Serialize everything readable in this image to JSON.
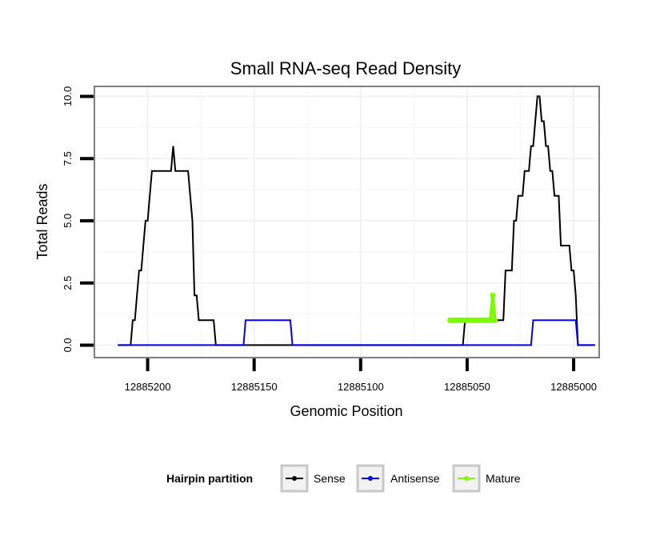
{
  "chart_data": {
    "type": "line",
    "title": "Small RNA-seq Read Density",
    "xlabel": "Genomic Position",
    "ylabel": "Total Reads",
    "x_reversed": true,
    "xlim": [
      12885225,
      12884988
    ],
    "ylim": [
      -0.5,
      10.4
    ],
    "x_ticks": [
      12885200,
      12885150,
      12885100,
      12885050,
      12885000
    ],
    "x_tick_labels": [
      "12885200",
      "12885150",
      "12885100",
      "12885050",
      "12885000"
    ],
    "y_ticks": [
      0,
      2.5,
      5,
      7.5,
      10
    ],
    "y_tick_labels": [
      "0.0",
      "2.5",
      "5.0",
      "7.5",
      "10.0"
    ],
    "grid": true,
    "legend": {
      "title": "Hairpin partition",
      "position": "bottom",
      "entries": [
        "Sense",
        "Antisense",
        "Mature"
      ]
    },
    "series": [
      {
        "name": "Sense",
        "color": "#000000",
        "x": [
          12885214,
          12885209,
          12885208,
          12885207,
          12885206,
          12885205,
          12885204,
          12885203,
          12885202,
          12885201,
          12885200,
          12885199,
          12885198,
          12885197,
          12885196,
          12885195,
          12885194,
          12885193,
          12885192,
          12885191,
          12885190,
          12885189,
          12885188,
          12885187,
          12885186,
          12885185,
          12885184,
          12885183,
          12885182,
          12885181,
          12885180,
          12885179,
          12885178,
          12885177,
          12885176,
          12885175,
          12885174,
          12885173,
          12885172,
          12885171,
          12885170,
          12885169,
          12885168,
          12885167,
          12885166,
          12885165,
          12885164,
          12885163,
          12885162,
          12885161,
          12885160,
          12885155,
          12885150,
          12885140,
          12885120,
          12885100,
          12885080,
          12885060,
          12885055,
          12885052,
          12885051,
          12885050,
          12885049,
          12885048,
          12885047,
          12885046,
          12885045,
          12885044,
          12885043,
          12885042,
          12885041,
          12885040,
          12885039,
          12885038,
          12885037,
          12885036,
          12885035,
          12885034,
          12885033,
          12885032,
          12885031,
          12885030,
          12885029,
          12885028,
          12885027,
          12885026,
          12885025,
          12885024,
          12885023,
          12885022,
          12885021,
          12885020,
          12885019,
          12885018,
          12885017,
          12885016,
          12885015,
          12885014,
          12885013,
          12885012,
          12885011,
          12885010,
          12885009,
          12885008,
          12885007,
          12885006,
          12885005,
          12885004,
          12885003,
          12885002,
          12885001,
          12885000,
          12884999,
          12884998,
          12884997,
          12884996,
          12884995,
          12884994,
          12884993,
          12884992,
          12884991,
          12884990
        ],
        "values": [
          0,
          0,
          0,
          1,
          1,
          2,
          3,
          3,
          4,
          5,
          5,
          6,
          7,
          7,
          7,
          7,
          7,
          7,
          7,
          7,
          7,
          7,
          8,
          7,
          7,
          7,
          7,
          7,
          7,
          7,
          6,
          5,
          2,
          2,
          1,
          1,
          1,
          1,
          1,
          1,
          1,
          1,
          0,
          0,
          0,
          0,
          0,
          0,
          0,
          0,
          0,
          0,
          0,
          0,
          0,
          0,
          0,
          0,
          0,
          0,
          1,
          1,
          1,
          1,
          1,
          1,
          1,
          1,
          1,
          1,
          1,
          1,
          1,
          2,
          1,
          1,
          1,
          1,
          1,
          3,
          3,
          3,
          3,
          5,
          5,
          6,
          6,
          6,
          7,
          7,
          7,
          8,
          8,
          9,
          10,
          10,
          9,
          9,
          8,
          8,
          7,
          7,
          6,
          6,
          6,
          4,
          4,
          4,
          4,
          4,
          3,
          3,
          2,
          0,
          0,
          0,
          0,
          0,
          0,
          0,
          0,
          0
        ]
      },
      {
        "name": "Antisense",
        "color": "#0000ff",
        "x": [
          12885214,
          12885200,
          12885180,
          12885160,
          12885156,
          12885155,
          12885154,
          12885140,
          12885134,
          12885133,
          12885132,
          12885120,
          12885100,
          12885080,
          12885060,
          12885050,
          12885040,
          12885030,
          12885021,
          12885020,
          12885019,
          12885000,
          12884999,
          12884998,
          12884997,
          12884990
        ],
        "values": [
          0,
          0,
          0,
          0,
          0,
          0,
          1,
          1,
          1,
          1,
          0,
          0,
          0,
          0,
          0,
          0,
          0,
          0,
          0,
          0,
          1,
          1,
          1,
          0,
          0,
          0
        ]
      },
      {
        "name": "Mature",
        "color": "#7cfc00",
        "x": [
          12885058,
          12885057,
          12885056,
          12885055,
          12885054,
          12885053,
          12885052,
          12885051,
          12885050,
          12885049,
          12885048,
          12885047,
          12885046,
          12885045,
          12885044,
          12885043,
          12885042,
          12885041,
          12885040,
          12885039,
          12885038,
          12885037
        ],
        "values": [
          1,
          1,
          1,
          1,
          1,
          1,
          1,
          1,
          1,
          1,
          1,
          1,
          1,
          1,
          1,
          1,
          1,
          1,
          1,
          1,
          2,
          1
        ]
      }
    ]
  }
}
